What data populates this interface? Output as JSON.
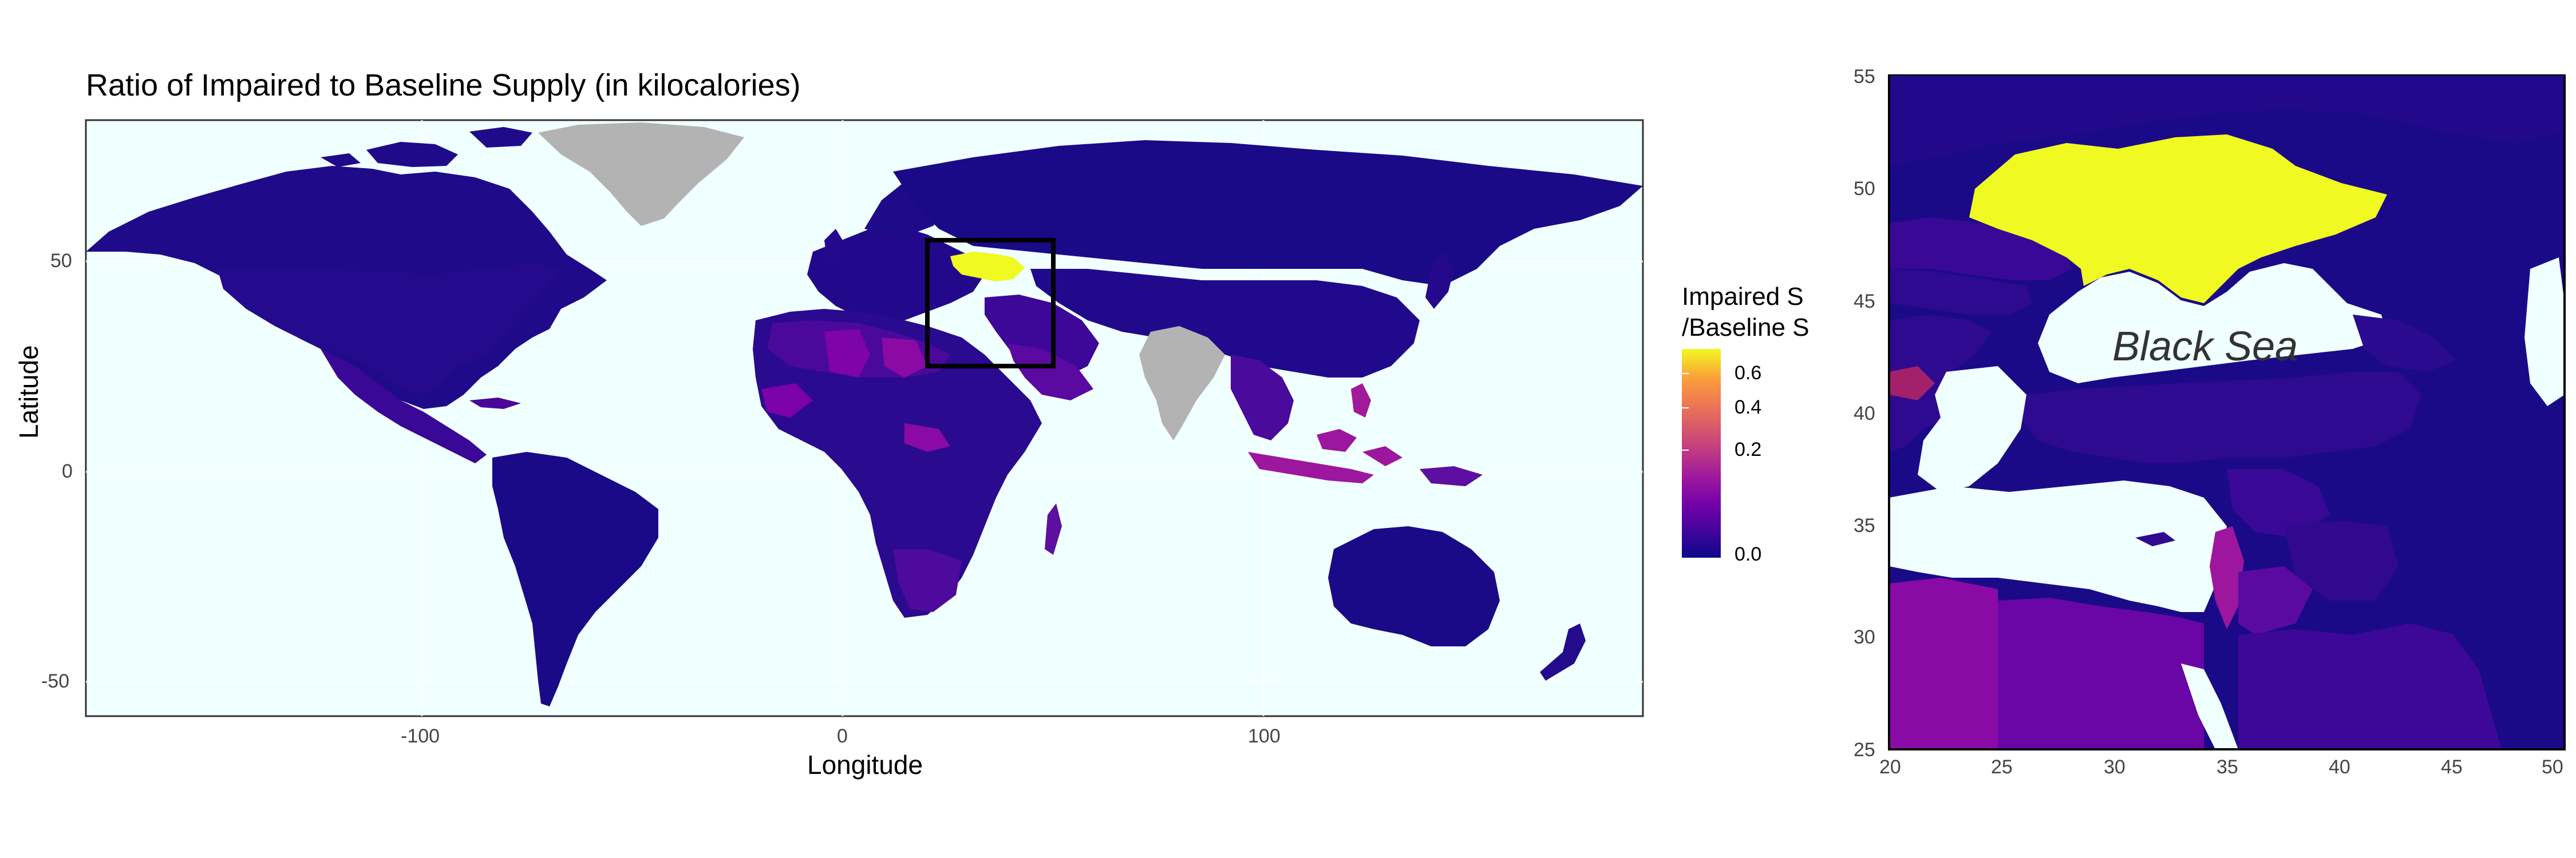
{
  "main_map": {
    "title": "Ratio of Impaired to Baseline Supply (in kilocalories)",
    "xlabel": "Longitude",
    "ylabel": "Latitude",
    "x_ticks": [
      "-100",
      "0",
      "100"
    ],
    "y_ticks": [
      "50",
      "0",
      "-50"
    ],
    "ocean_color": "#f0ffff",
    "no_data_color": "#b3b3b3",
    "highlight_box": {
      "lon_min": 20,
      "lon_max": 50,
      "lat_min": 25,
      "lat_max": 55
    }
  },
  "legend": {
    "title_line1": "Impaired S",
    "title_line2": "/Baseline S",
    "ticks": [
      "0.6",
      "0.4",
      "0.2",
      "0.0"
    ],
    "palette": "plasma",
    "low_color": "#0d0887",
    "high_color": "#f0f921"
  },
  "inset_map": {
    "sea_label": "Black Sea",
    "x_ticks": [
      "20",
      "25",
      "30",
      "35",
      "40",
      "45",
      "50"
    ],
    "y_ticks": [
      "55",
      "50",
      "45",
      "40",
      "35",
      "30",
      "25"
    ],
    "highlight_country_color": "#f0f921"
  }
}
